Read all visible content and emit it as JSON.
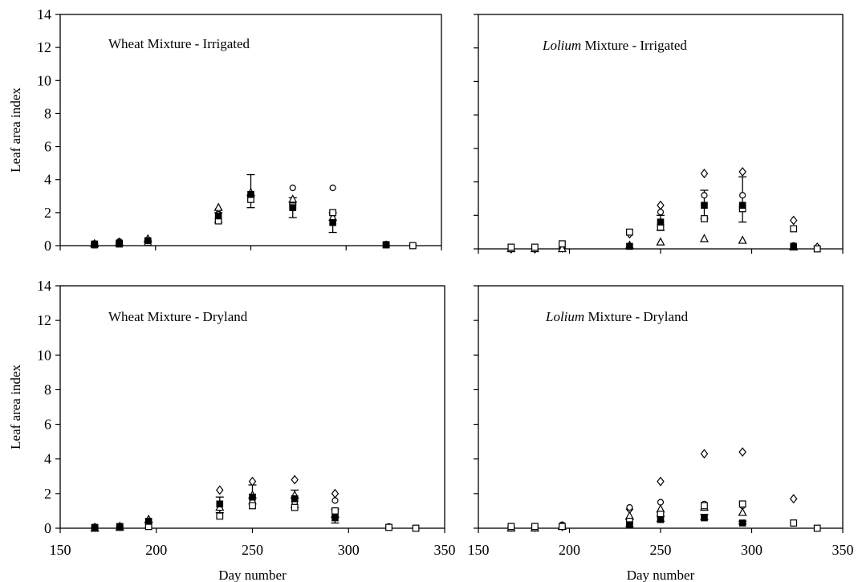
{
  "chart_data": {
    "type": "scatter",
    "xlabel": "Day number",
    "ylabel": "Leaf area index",
    "xlim": [
      150,
      350
    ],
    "ylim": [
      0,
      14
    ],
    "x_ticks": [
      "150",
      "200",
      "250",
      "300",
      "350"
    ],
    "y_ticks": [
      "0",
      "2",
      "4",
      "6",
      "8",
      "10",
      "12",
      "14"
    ],
    "grid": false,
    "legend": null,
    "panels": [
      {
        "id": "wheat-irrigated",
        "title_italic": "",
        "title_rest": "Wheat Mixture - Irrigated",
        "show_y_axis_labels": true,
        "show_x_axis_labels": false,
        "series": [
          {
            "marker": "diamond",
            "points": [
              [
                168,
                0.1
              ],
              [
                181,
                0.2
              ],
              [
                196,
                0.3
              ],
              [
                233,
                2.2
              ],
              [
                250,
                3.0
              ],
              [
                272,
                2.5
              ],
              [
                293,
                1.9
              ]
            ]
          },
          {
            "marker": "circle",
            "points": [
              [
                168,
                0.05
              ],
              [
                181,
                0.25
              ],
              [
                196,
                0.35
              ],
              [
                233,
                1.9
              ],
              [
                250,
                2.9
              ],
              [
                272,
                3.5
              ],
              [
                293,
                3.5
              ],
              [
                321,
                0.1
              ]
            ]
          },
          {
            "marker": "triangle",
            "points": [
              [
                168,
                0.1
              ],
              [
                181,
                0.2
              ],
              [
                196,
                0.4
              ],
              [
                233,
                2.3
              ],
              [
                250,
                3.2
              ],
              [
                272,
                2.8
              ],
              [
                293,
                1.7
              ]
            ]
          },
          {
            "marker": "square-open",
            "points": [
              [
                168,
                0.05
              ],
              [
                181,
                0.1
              ],
              [
                196,
                0.2
              ],
              [
                233,
                1.5
              ],
              [
                250,
                2.8
              ],
              [
                272,
                2.4
              ],
              [
                293,
                2.0
              ],
              [
                321,
                0.05
              ],
              [
                335,
                0.0
              ]
            ]
          },
          {
            "marker": "square-filled",
            "points": [
              [
                168,
                0.1
              ],
              [
                181,
                0.15
              ],
              [
                196,
                0.3
              ],
              [
                233,
                1.8
              ],
              [
                250,
                3.1
              ],
              [
                272,
                2.3
              ],
              [
                293,
                1.4
              ],
              [
                321,
                0.05
              ]
            ]
          }
        ],
        "errorbars": [
          [
            233,
            1.4,
            2.0
          ],
          [
            250,
            2.3,
            4.3
          ],
          [
            272,
            1.7,
            2.9
          ],
          [
            293,
            0.8,
            2.0
          ]
        ]
      },
      {
        "id": "lolium-irrigated",
        "title_italic": "Lolium",
        "title_rest": " Mixture - Irrigated",
        "show_y_axis_labels": false,
        "show_x_axis_labels": false,
        "series": [
          {
            "marker": "diamond",
            "points": [
              [
                168,
                0.0
              ],
              [
                181,
                0.0
              ],
              [
                196,
                0.05
              ],
              [
                233,
                0.9
              ],
              [
                250,
                2.6
              ],
              [
                274,
                4.5
              ],
              [
                295,
                4.6
              ],
              [
                323,
                1.7
              ],
              [
                336,
                0.1
              ]
            ]
          },
          {
            "marker": "circle",
            "points": [
              [
                168,
                0.0
              ],
              [
                181,
                0.05
              ],
              [
                196,
                0.1
              ],
              [
                233,
                1.0
              ],
              [
                250,
                2.2
              ],
              [
                274,
                3.2
              ],
              [
                295,
                3.2
              ],
              [
                323,
                0.2
              ]
            ]
          },
          {
            "marker": "triangle",
            "points": [
              [
                168,
                0.0
              ],
              [
                181,
                0.0
              ],
              [
                196,
                0.0
              ],
              [
                233,
                0.2
              ],
              [
                250,
                0.4
              ],
              [
                274,
                0.6
              ],
              [
                295,
                0.5
              ],
              [
                323,
                0.1
              ]
            ]
          },
          {
            "marker": "square-open",
            "points": [
              [
                168,
                0.1
              ],
              [
                181,
                0.1
              ],
              [
                196,
                0.3
              ],
              [
                233,
                1.0
              ],
              [
                250,
                1.3
              ],
              [
                274,
                1.8
              ],
              [
                295,
                2.4
              ],
              [
                323,
                1.2
              ],
              [
                336,
                0.0
              ]
            ]
          },
          {
            "marker": "square-filled",
            "points": [
              [
                233,
                0.15
              ],
              [
                250,
                1.6
              ],
              [
                274,
                2.6
              ],
              [
                295,
                2.6
              ],
              [
                323,
                0.15
              ]
            ]
          }
        ],
        "errorbars": [
          [
            250,
            1.1,
            2.0
          ],
          [
            274,
            1.8,
            3.5
          ],
          [
            295,
            1.6,
            4.3
          ]
        ]
      },
      {
        "id": "wheat-dryland",
        "title_italic": "",
        "title_rest": "Wheat Mixture - Dryland",
        "show_y_axis_labels": true,
        "show_x_axis_labels": true,
        "series": [
          {
            "marker": "diamond",
            "points": [
              [
                168,
                0.05
              ],
              [
                181,
                0.1
              ],
              [
                196,
                0.3
              ],
              [
                233,
                2.2
              ],
              [
                250,
                2.7
              ],
              [
                272,
                2.8
              ],
              [
                293,
                2.0
              ]
            ]
          },
          {
            "marker": "circle",
            "points": [
              [
                168,
                0.05
              ],
              [
                181,
                0.1
              ],
              [
                196,
                0.2
              ],
              [
                233,
                1.3
              ],
              [
                250,
                1.5
              ],
              [
                272,
                1.5
              ],
              [
                293,
                1.6
              ],
              [
                321,
                0.1
              ]
            ]
          },
          {
            "marker": "triangle",
            "points": [
              [
                168,
                0.0
              ],
              [
                181,
                0.05
              ],
              [
                196,
                0.5
              ],
              [
                233,
                1.2
              ],
              [
                250,
                1.9
              ],
              [
                272,
                1.9
              ],
              [
                293,
                0.8
              ]
            ]
          },
          {
            "marker": "square-open",
            "points": [
              [
                168,
                0.0
              ],
              [
                181,
                0.05
              ],
              [
                196,
                0.1
              ],
              [
                233,
                0.7
              ],
              [
                250,
                1.3
              ],
              [
                272,
                1.2
              ],
              [
                293,
                1.0
              ],
              [
                321,
                0.05
              ],
              [
                335,
                0.0
              ]
            ]
          },
          {
            "marker": "square-filled",
            "points": [
              [
                168,
                0.05
              ],
              [
                181,
                0.1
              ],
              [
                196,
                0.4
              ],
              [
                233,
                1.4
              ],
              [
                250,
                1.8
              ],
              [
                272,
                1.7
              ],
              [
                293,
                0.6
              ]
            ]
          }
        ],
        "errorbars": [
          [
            233,
            0.9,
            1.8
          ],
          [
            250,
            1.4,
            2.5
          ],
          [
            272,
            1.2,
            2.2
          ],
          [
            293,
            0.3,
            1.1
          ]
        ]
      },
      {
        "id": "lolium-dryland",
        "title_italic": "Lolium",
        "title_rest": " Mixture - Dryland",
        "show_y_axis_labels": false,
        "show_x_axis_labels": true,
        "series": [
          {
            "marker": "diamond",
            "points": [
              [
                168,
                0.05
              ],
              [
                181,
                0.05
              ],
              [
                196,
                0.1
              ],
              [
                233,
                1.1
              ],
              [
                250,
                2.7
              ],
              [
                274,
                4.3
              ],
              [
                295,
                4.4
              ],
              [
                323,
                1.7
              ]
            ]
          },
          {
            "marker": "circle",
            "points": [
              [
                168,
                0.05
              ],
              [
                181,
                0.1
              ],
              [
                196,
                0.2
              ],
              [
                233,
                1.2
              ],
              [
                250,
                1.5
              ],
              [
                274,
                1.4
              ],
              [
                295,
                1.3
              ]
            ]
          },
          {
            "marker": "triangle",
            "points": [
              [
                168,
                0.0
              ],
              [
                181,
                0.0
              ],
              [
                196,
                0.1
              ],
              [
                233,
                0.7
              ],
              [
                250,
                1.1
              ],
              [
                274,
                1.2
              ],
              [
                295,
                0.9
              ]
            ]
          },
          {
            "marker": "square-open",
            "points": [
              [
                168,
                0.1
              ],
              [
                181,
                0.1
              ],
              [
                196,
                0.1
              ],
              [
                233,
                0.4
              ],
              [
                250,
                0.8
              ],
              [
                274,
                1.3
              ],
              [
                295,
                1.4
              ],
              [
                323,
                0.3
              ],
              [
                336,
                0.0
              ]
            ]
          },
          {
            "marker": "square-filled",
            "points": [
              [
                233,
                0.2
              ],
              [
                250,
                0.5
              ],
              [
                274,
                0.6
              ],
              [
                295,
                0.3
              ]
            ]
          }
        ],
        "errorbars": [
          [
            233,
            0.1,
            0.5
          ],
          [
            250,
            0.4,
            0.7
          ],
          [
            274,
            0.5,
            0.8
          ],
          [
            295,
            0.25,
            0.4
          ]
        ]
      }
    ]
  }
}
